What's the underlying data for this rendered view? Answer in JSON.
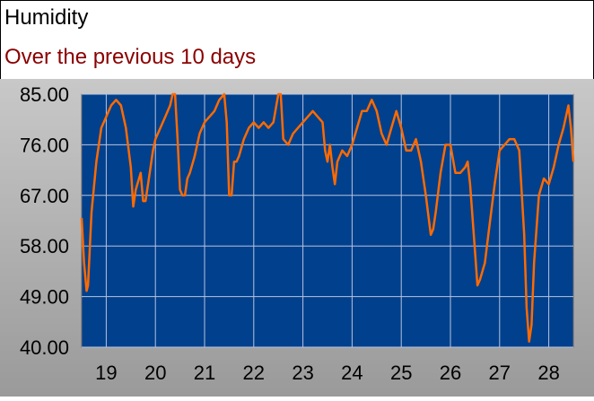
{
  "header": {
    "title": "Humidity",
    "subtitle": "Over the previous 10 days"
  },
  "colors": {
    "panel_background": "#a8a8a8",
    "plot_background": "#00408c",
    "grid": "#b8c4e0",
    "line": "#ff6a00",
    "subtitle": "#8b0000"
  },
  "chart_data": {
    "type": "line",
    "title": "Humidity",
    "subtitle": "Over the previous 10 days",
    "xlabel": "",
    "ylabel": "",
    "xlim": [
      18.5,
      28.5
    ],
    "ylim": [
      40,
      85
    ],
    "grid": true,
    "legend": "none",
    "yticks": [
      "85.00",
      "76.00",
      "67.00",
      "58.00",
      "49.00",
      "40.00"
    ],
    "xticks": [
      "19",
      "20",
      "21",
      "22",
      "23",
      "24",
      "25",
      "26",
      "27",
      "28"
    ],
    "series": [
      {
        "x": [
          18.5,
          18.55,
          18.6,
          18.63,
          18.7,
          18.8,
          18.9,
          19.0,
          19.1,
          19.2,
          19.3,
          19.4,
          19.5,
          19.55,
          19.6,
          19.7,
          19.75,
          19.8,
          19.85,
          19.95,
          20.0,
          20.1,
          20.2,
          20.3,
          20.35,
          20.4,
          20.45,
          20.5,
          20.55,
          20.6,
          20.65,
          20.7,
          20.8,
          20.9,
          21.0,
          21.1,
          21.2,
          21.3,
          21.4,
          21.45,
          21.5,
          21.55,
          21.6,
          21.65,
          21.7,
          21.8,
          21.9,
          22.0,
          22.1,
          22.2,
          22.3,
          22.4,
          22.5,
          22.55,
          22.6,
          22.7,
          22.8,
          22.9,
          23.0,
          23.1,
          23.2,
          23.3,
          23.4,
          23.45,
          23.5,
          23.55,
          23.6,
          23.65,
          23.7,
          23.8,
          23.9,
          24.0,
          24.1,
          24.2,
          24.3,
          24.4,
          24.5,
          24.6,
          24.7,
          24.8,
          24.9,
          25.0,
          25.1,
          25.2,
          25.3,
          25.4,
          25.5,
          25.6,
          25.65,
          25.7,
          25.8,
          25.9,
          26.0,
          26.1,
          26.2,
          26.3,
          26.35,
          26.4,
          26.5,
          26.55,
          26.6,
          26.7,
          26.8,
          26.9,
          27.0,
          27.1,
          27.2,
          27.3,
          27.4,
          27.5,
          27.55,
          27.6,
          27.65,
          27.7,
          27.8,
          27.9,
          28.0,
          28.1,
          28.2,
          28.3,
          28.4,
          28.45,
          28.5
        ],
        "y": [
          63,
          55,
          50,
          51,
          64,
          73,
          79,
          81,
          83,
          84,
          83,
          79,
          72,
          65,
          68,
          71,
          66,
          66,
          69,
          75,
          77,
          79,
          81,
          83,
          85,
          85,
          77,
          68,
          67,
          67,
          70,
          71,
          74,
          78,
          80,
          81,
          82,
          84,
          85,
          80,
          67,
          67,
          73,
          73,
          74,
          77,
          79,
          80,
          79,
          80,
          79,
          80,
          85,
          85,
          77,
          76,
          78,
          79,
          80,
          81,
          82,
          81,
          80,
          75,
          73,
          76,
          72,
          69,
          73,
          75,
          74,
          76,
          79,
          82,
          82,
          84,
          82,
          78,
          76,
          79,
          82,
          79,
          75,
          75,
          77,
          73,
          67,
          60,
          61,
          64,
          71,
          76,
          76,
          71,
          71,
          72,
          73,
          69,
          57,
          51,
          52,
          55,
          62,
          69,
          75,
          76,
          77,
          77,
          75,
          60,
          47,
          41,
          44,
          55,
          67,
          70,
          69,
          72,
          76,
          79,
          83,
          79,
          73
        ]
      }
    ]
  }
}
